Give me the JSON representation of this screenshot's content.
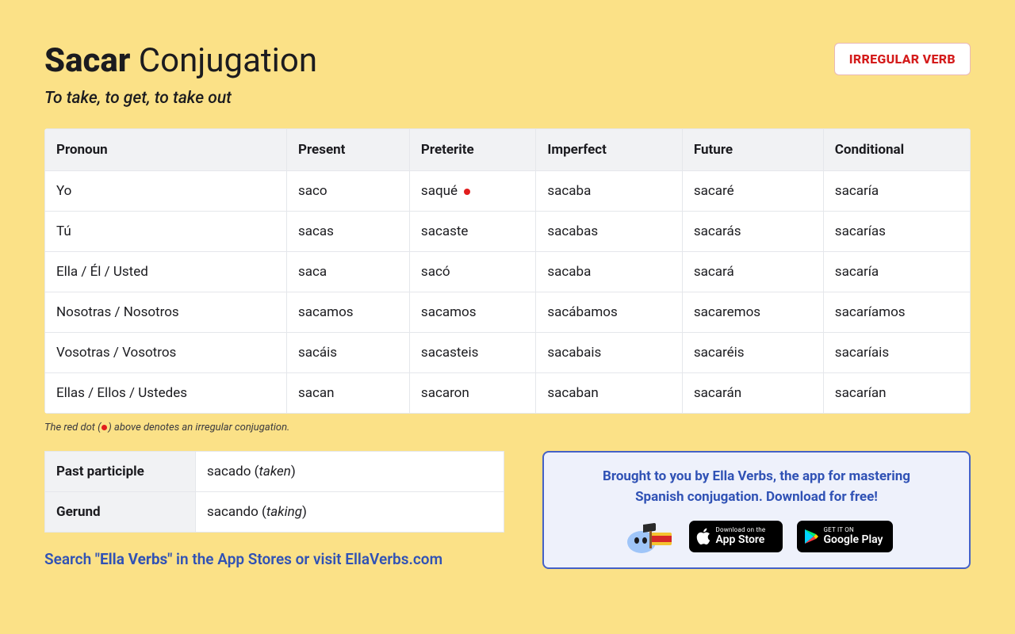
{
  "header": {
    "verb": "Sacar",
    "title_suffix": "Conjugation",
    "subtitle": "To take, to get, to take out",
    "badge": "IRREGULAR VERB"
  },
  "table": {
    "columns": [
      "Pronoun",
      "Present",
      "Preterite",
      "Imperfect",
      "Future",
      "Conditional"
    ],
    "rows": [
      {
        "pronoun": "Yo",
        "present": "saco",
        "preterite": "saqué",
        "preterite_irregular": true,
        "imperfect": "sacaba",
        "future": "sacaré",
        "conditional": "sacaría"
      },
      {
        "pronoun": "Tú",
        "present": "sacas",
        "preterite": "sacaste",
        "preterite_irregular": false,
        "imperfect": "sacabas",
        "future": "sacarás",
        "conditional": "sacarías"
      },
      {
        "pronoun": "Ella / Él / Usted",
        "present": "saca",
        "preterite": "sacó",
        "preterite_irregular": false,
        "imperfect": "sacaba",
        "future": "sacará",
        "conditional": "sacaría"
      },
      {
        "pronoun": "Nosotras / Nosotros",
        "present": "sacamos",
        "preterite": "sacamos",
        "preterite_irregular": false,
        "imperfect": "sacábamos",
        "future": "sacaremos",
        "conditional": "sacaríamos"
      },
      {
        "pronoun": "Vosotras / Vosotros",
        "present": "sacáis",
        "preterite": "sacasteis",
        "preterite_irregular": false,
        "imperfect": "sacabais",
        "future": "sacaréis",
        "conditional": "sacaríais"
      },
      {
        "pronoun": "Ellas / Ellos / Ustedes",
        "present": "sacan",
        "preterite": "sacaron",
        "preterite_irregular": false,
        "imperfect": "sacaban",
        "future": "sacarán",
        "conditional": "sacarían"
      }
    ]
  },
  "legend": {
    "prefix": "The red dot (",
    "suffix": ") above denotes an irregular conjugation."
  },
  "forms": {
    "past_participle_label": "Past participle",
    "past_participle_value": "sacado",
    "past_participle_gloss": "taken",
    "gerund_label": "Gerund",
    "gerund_value": "sacando",
    "gerund_gloss": "taking"
  },
  "cta": {
    "prefix": "Search ",
    "quoted": "\"Ella Verbs\"",
    "middle": " in the App Stores or ",
    "link": "visit EllaVerbs.com"
  },
  "promo": {
    "line1": "Brought to you by Ella Verbs, the app for mastering",
    "line2": "Spanish conjugation. Download for free!",
    "appstore_small": "Download on the",
    "appstore_big": "App Store",
    "play_small": "GET IT ON",
    "play_big": "Google Play"
  },
  "colors": {
    "page_bg": "#fbe187",
    "table_header_bg": "#f1f2f4",
    "cell_border": "#e5e7eb",
    "badge_text": "#d41c1c",
    "dot": "#e11d1d",
    "promo_bg": "#eef1fb",
    "promo_border": "#4461c7",
    "link": "#3052b5"
  }
}
